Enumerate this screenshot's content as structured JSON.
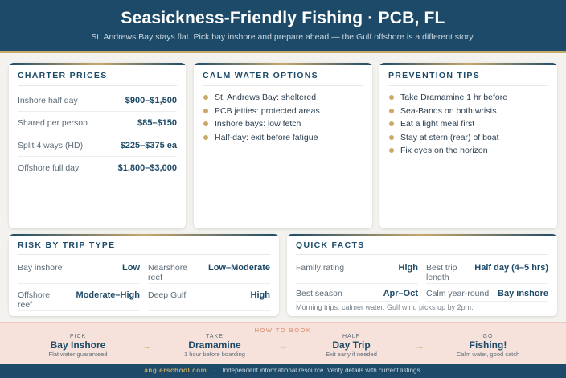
{
  "header": {
    "title": "Seasickness-Friendly Fishing · PCB, FL",
    "subtitle": "St. Andrews Bay stays flat. Pick bay inshore and prepare ahead — the Gulf offshore is a different story."
  },
  "charter": {
    "title": "CHARTER PRICES",
    "rows": [
      {
        "label": "Inshore half day",
        "value": "$900–$1,500"
      },
      {
        "label": "Shared per person",
        "value": "$85–$150"
      },
      {
        "label": "Split 4 ways (HD)",
        "value": "$225–$375 ea"
      },
      {
        "label": "Offshore full day",
        "value": "$1,800–$3,000"
      }
    ]
  },
  "calm": {
    "title": "CALM WATER OPTIONS",
    "items": [
      "St. Andrews Bay: sheltered",
      "PCB jetties: protected areas",
      "Inshore bays: low fetch",
      "Half-day: exit before fatigue"
    ]
  },
  "tips": {
    "title": "PREVENTION TIPS",
    "items": [
      "Take Dramamine 1 hr before",
      "Sea-Bands on both wrists",
      "Eat a light meal first",
      "Stay at stern (rear) of boat",
      "Fix eyes on the horizon"
    ]
  },
  "risk": {
    "title": "RISK BY TRIP TYPE",
    "cells": [
      {
        "label": "Bay inshore",
        "value": "Low"
      },
      {
        "label": "Nearshore reef",
        "value": "Low–Moderate"
      },
      {
        "label": "Offshore reef",
        "value": "Moderate–High"
      },
      {
        "label": "Deep Gulf",
        "value": "High"
      }
    ]
  },
  "facts": {
    "title": "QUICK FACTS",
    "cells": [
      {
        "label": "Family rating",
        "value": "High"
      },
      {
        "label": "Best trip length",
        "value": "Half day (4–5 hrs)"
      },
      {
        "label": "Best season",
        "value": "Apr–Oct"
      },
      {
        "label": "Calm year-round",
        "value": "Bay inshore"
      }
    ],
    "note": "Morning trips: calmer water. Gulf wind picks up by 2pm."
  },
  "book": {
    "title": "HOW TO BOOK",
    "steps": [
      {
        "kicker": "PICK",
        "title": "Bay Inshore",
        "sub": "Flat water guaranteed"
      },
      {
        "kicker": "TAKE",
        "title": "Dramamine",
        "sub": "1 hour before boarding"
      },
      {
        "kicker": "HALF",
        "title": "Day Trip",
        "sub": "Exit early if needed"
      },
      {
        "kicker": "GO",
        "title": "Fishing!",
        "sub": "Calm water, good catch"
      }
    ]
  },
  "footer": {
    "site": "anglerschool.com",
    "sep": "·",
    "text": "Independent informational resource. Verify details with current listings."
  }
}
